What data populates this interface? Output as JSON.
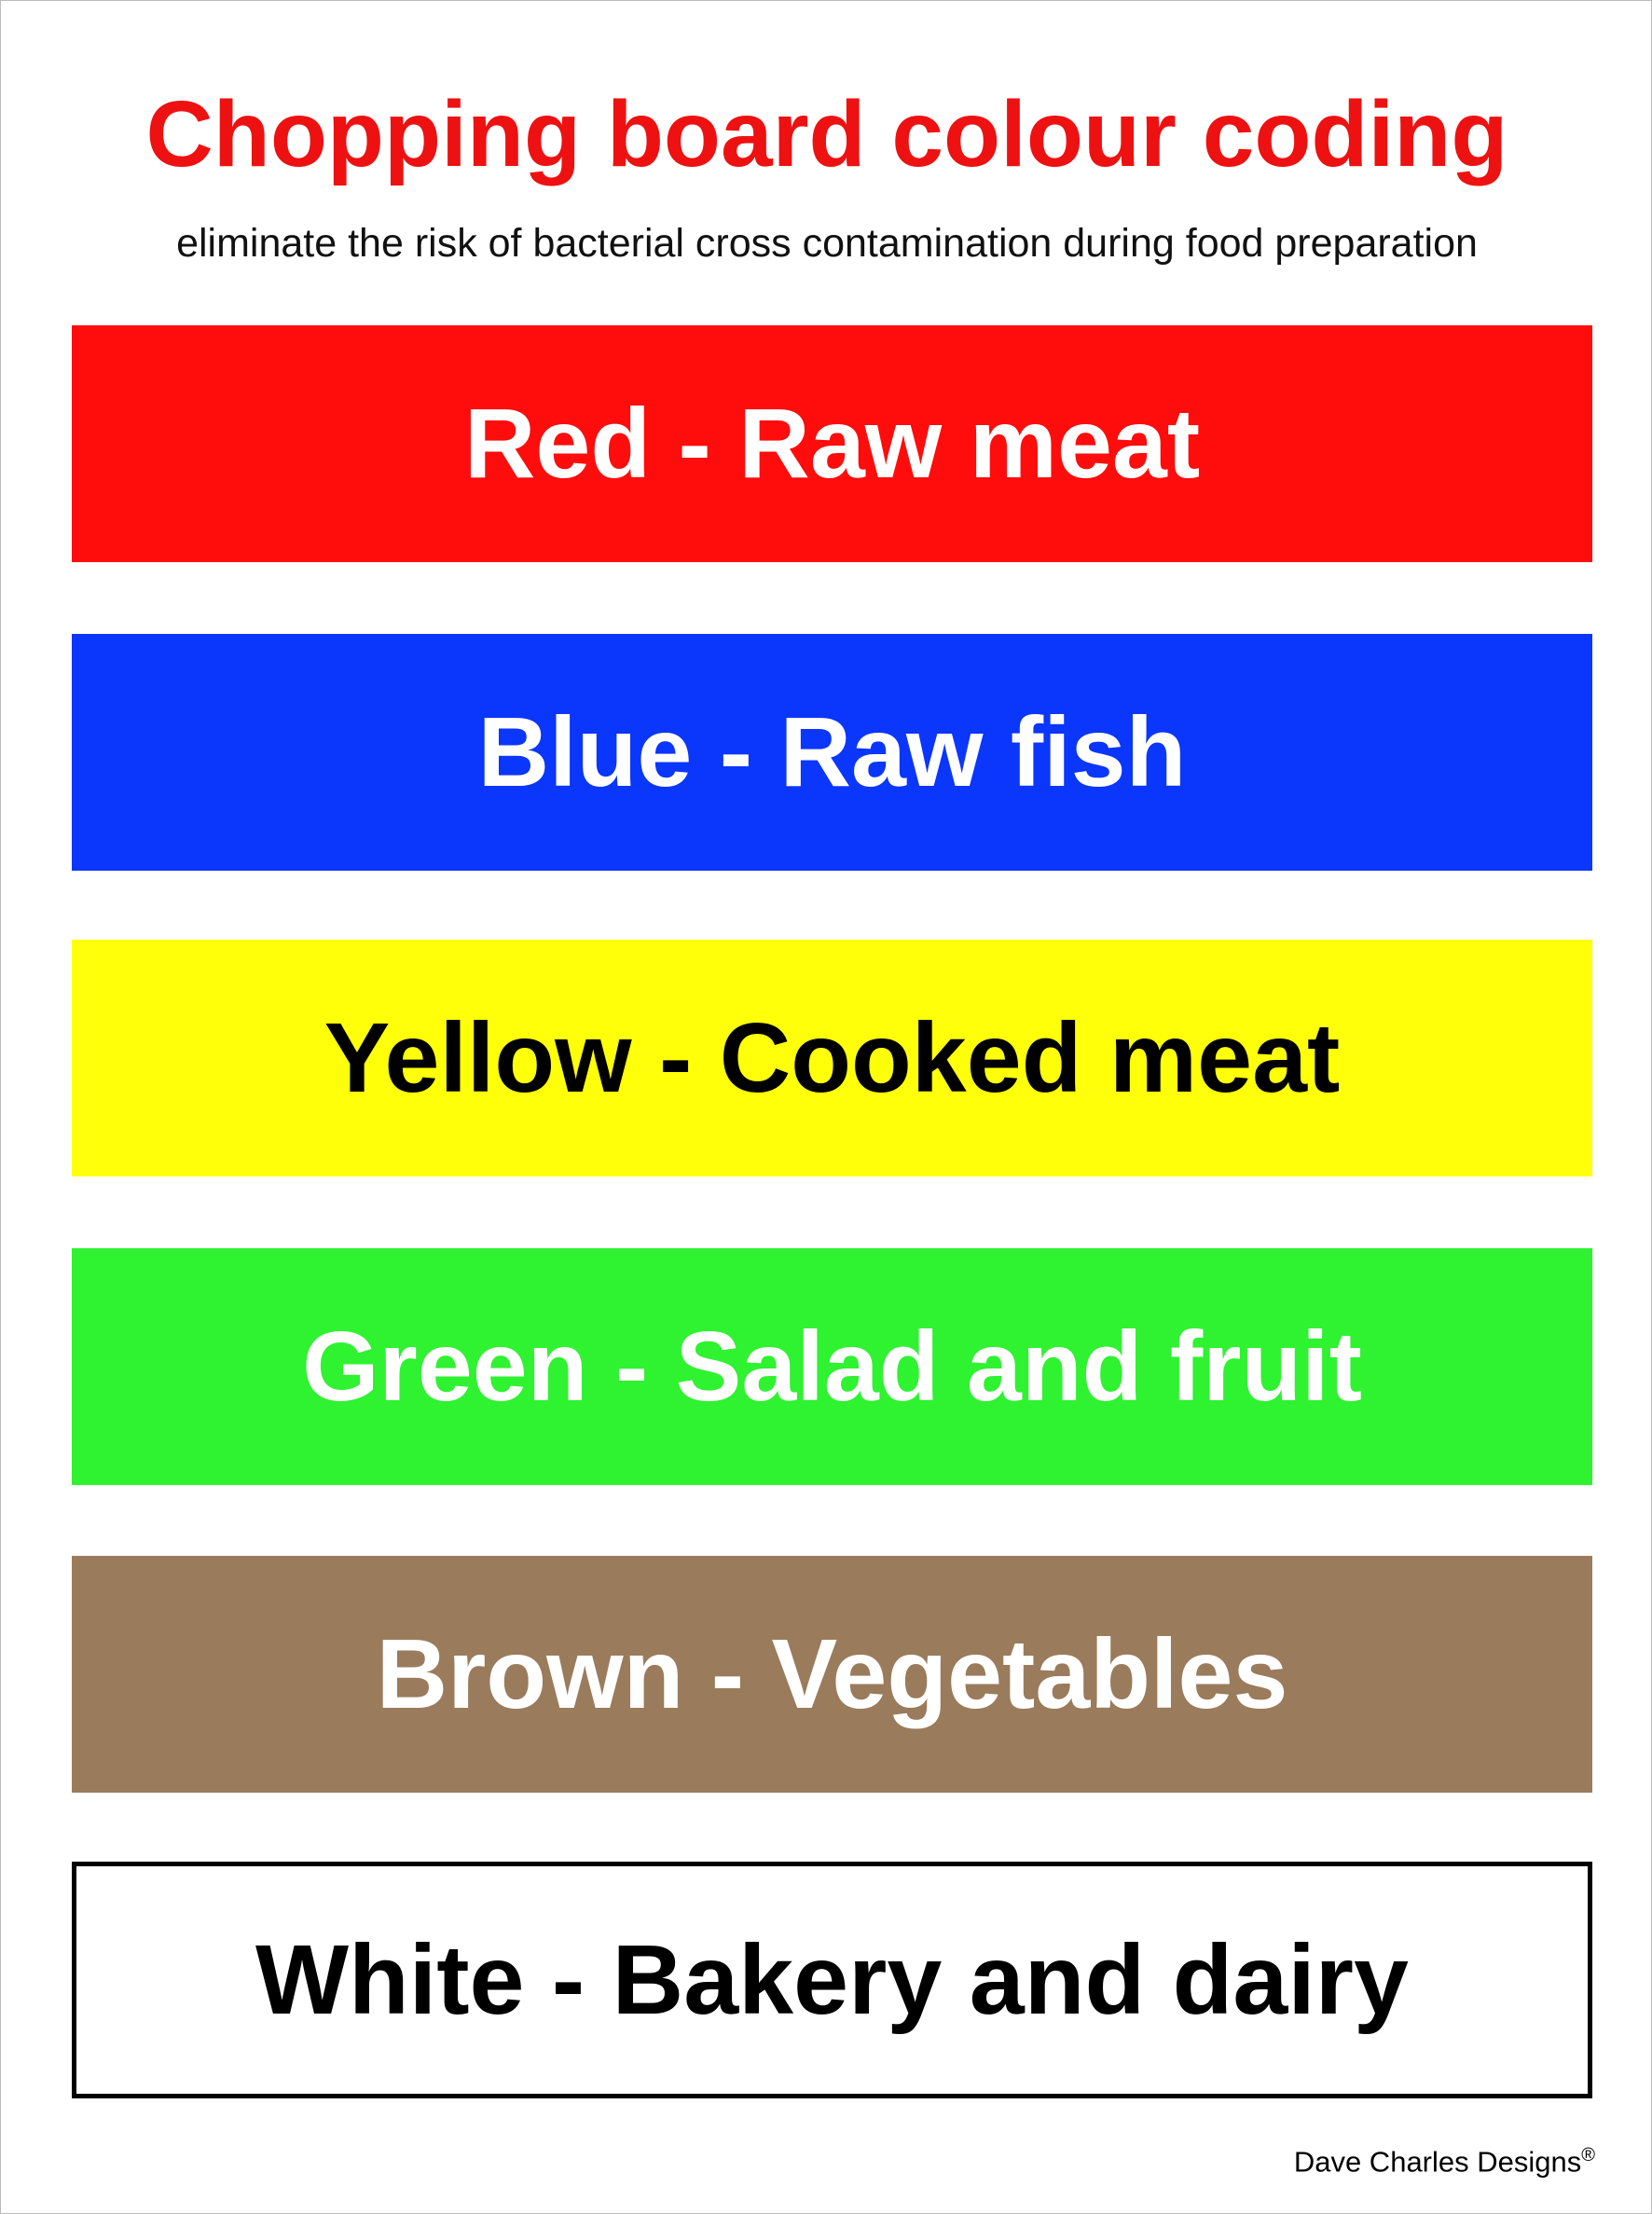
{
  "header": {
    "title": "Chopping board colour coding",
    "subtitle": "eliminate the risk of bacterial cross contamination during food preparation"
  },
  "boards": [
    {
      "label": "Red - Raw meat"
    },
    {
      "label": "Blue - Raw fish"
    },
    {
      "label": "Yellow - Cooked meat"
    },
    {
      "label": "Green - Salad and fruit"
    },
    {
      "label": "Brown - Vegetables"
    },
    {
      "label": "White - Bakery and dairy"
    }
  ],
  "footer": {
    "credit": "Dave Charles Designs",
    "mark": "®"
  }
}
